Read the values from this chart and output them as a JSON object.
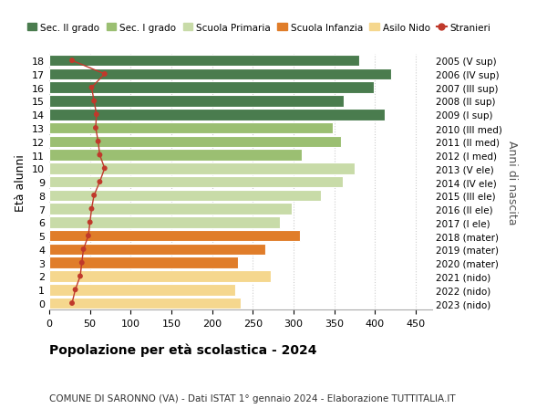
{
  "ages": [
    0,
    1,
    2,
    3,
    4,
    5,
    6,
    7,
    8,
    9,
    10,
    11,
    12,
    13,
    14,
    15,
    16,
    17,
    18
  ],
  "bar_values": [
    235,
    228,
    272,
    232,
    265,
    308,
    283,
    298,
    333,
    360,
    375,
    310,
    358,
    348,
    412,
    362,
    398,
    420,
    380
  ],
  "bar_colors": [
    "#f5d78e",
    "#f5d78e",
    "#f5d78e",
    "#e07d2a",
    "#e07d2a",
    "#e07d2a",
    "#c8dba8",
    "#c8dba8",
    "#c8dba8",
    "#c8dba8",
    "#c8dba8",
    "#9bbf72",
    "#9bbf72",
    "#9bbf72",
    "#4a7c4e",
    "#4a7c4e",
    "#4a7c4e",
    "#4a7c4e",
    "#4a7c4e"
  ],
  "stranieri_values": [
    28,
    32,
    38,
    40,
    42,
    48,
    50,
    52,
    55,
    62,
    68,
    62,
    60,
    57,
    58,
    55,
    52,
    68,
    28
  ],
  "right_labels": [
    "2023 (nido)",
    "2022 (nido)",
    "2021 (nido)",
    "2020 (mater)",
    "2019 (mater)",
    "2018 (mater)",
    "2017 (I ele)",
    "2016 (II ele)",
    "2015 (III ele)",
    "2014 (IV ele)",
    "2013 (V ele)",
    "2012 (I med)",
    "2011 (II med)",
    "2010 (III med)",
    "2009 (I sup)",
    "2008 (II sup)",
    "2007 (III sup)",
    "2006 (IV sup)",
    "2005 (V sup)"
  ],
  "color_sec2": "#4a7c4e",
  "color_sec1": "#9bbf72",
  "color_prim": "#c8dba8",
  "color_inf": "#e07d2a",
  "color_nido": "#f5d78e",
  "color_stranieri": "#c0392b",
  "title": "Popolazione per età scolastica - 2024",
  "subtitle": "COMUNE DI SARONNO (VA) - Dati ISTAT 1° gennaio 2024 - Elaborazione TUTTITALIA.IT",
  "xlabel_vals": [
    0,
    50,
    100,
    150,
    200,
    250,
    300,
    350,
    400,
    450
  ],
  "xlim": [
    0,
    470
  ],
  "ylabel_left": "Età alunni",
  "ylabel_right": "Anni di nascita",
  "bg_color": "#ffffff",
  "grid_color": "#cccccc"
}
